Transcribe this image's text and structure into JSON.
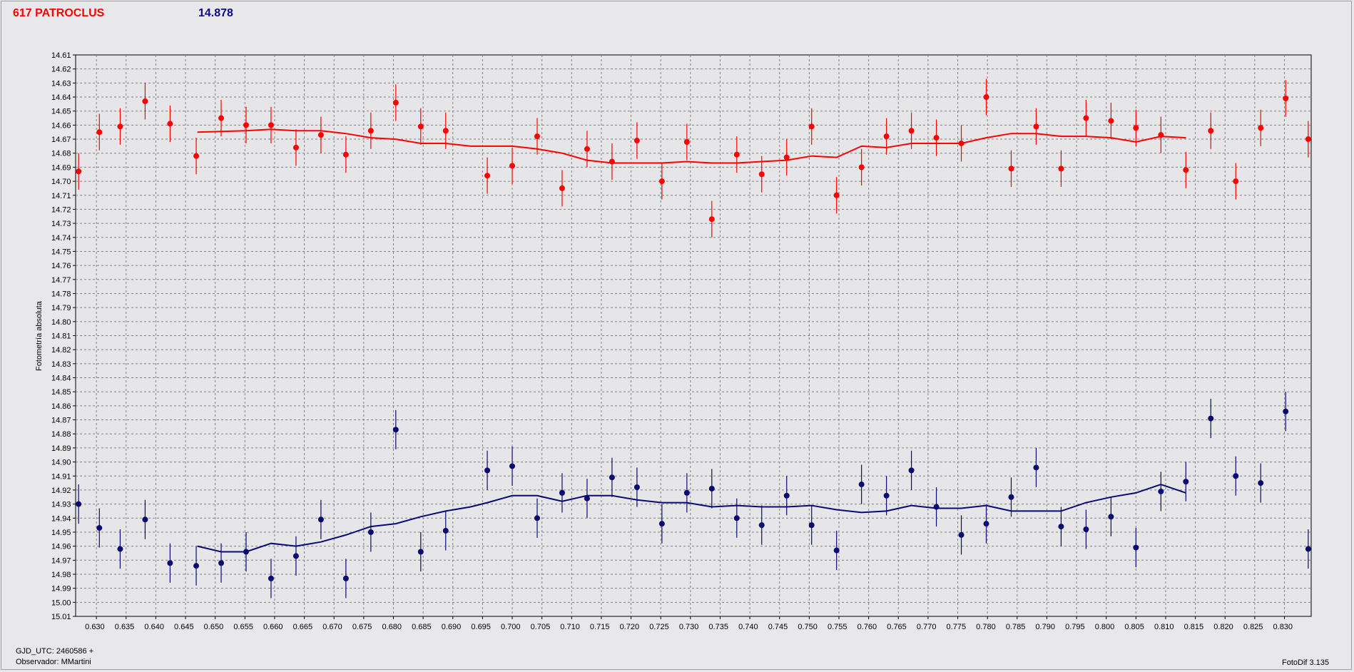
{
  "header": {
    "object_name": "617 PATROCLUS",
    "magnitude": "14.878"
  },
  "footer": {
    "gjd": "GJD_UTC: 2460586 +",
    "observer": "Observador: MMartini",
    "software": "FotoDif 3.135"
  },
  "colors": {
    "red_series": "#ff0000",
    "blue_series": "#0a0a70",
    "plot_bg": "#e6e6e8",
    "grid": "#808080"
  },
  "chart_data": {
    "type": "scatter",
    "ylabel": "Fotometría absoluta",
    "xlabel": "",
    "xlim": [
      0.6265,
      0.8345
    ],
    "ylim": [
      15.01,
      14.61
    ],
    "y_inverted": true,
    "grid": true,
    "x_ticks": [
      "0.630",
      "0.635",
      "0.640",
      "0.645",
      "0.650",
      "0.655",
      "0.660",
      "0.665",
      "0.670",
      "0.675",
      "0.680",
      "0.685",
      "0.690",
      "0.695",
      "0.700",
      "0.705",
      "0.710",
      "0.715",
      "0.720",
      "0.725",
      "0.730",
      "0.735",
      "0.740",
      "0.745",
      "0.750",
      "0.755",
      "0.760",
      "0.765",
      "0.770",
      "0.775",
      "0.780",
      "0.785",
      "0.790",
      "0.795",
      "0.800",
      "0.805",
      "0.810",
      "0.815",
      "0.820",
      "0.825",
      "0.830"
    ],
    "y_ticks": [
      "14.61",
      "14.62",
      "14.63",
      "14.64",
      "14.65",
      "14.66",
      "14.67",
      "14.68",
      "14.69",
      "14.70",
      "14.71",
      "14.72",
      "14.73",
      "14.74",
      "14.75",
      "14.76",
      "14.77",
      "14.78",
      "14.79",
      "14.80",
      "14.81",
      "14.82",
      "14.83",
      "14.84",
      "14.85",
      "14.86",
      "14.87",
      "14.88",
      "14.89",
      "14.90",
      "14.91",
      "14.92",
      "14.93",
      "14.94",
      "14.95",
      "14.96",
      "14.97",
      "14.98",
      "14.99",
      "15.00",
      "15.01"
    ],
    "series": [
      {
        "color": "#ff0000",
        "points": {
          "x": [
            0.627,
            0.6305,
            0.634,
            0.6382,
            0.6424,
            0.6468,
            0.651,
            0.6552,
            0.6594,
            0.6636,
            0.6678,
            0.672,
            0.6762,
            0.6804,
            0.6846,
            0.6888,
            0.6958,
            0.7,
            0.7042,
            0.7084,
            0.7126,
            0.7168,
            0.721,
            0.7252,
            0.7294,
            0.7336,
            0.7378,
            0.742,
            0.7462,
            0.7504,
            0.7546,
            0.7588,
            0.763,
            0.7672,
            0.7714,
            0.7756,
            0.7798,
            0.784,
            0.7882,
            0.7924,
            0.7966,
            0.8008,
            0.805,
            0.8092,
            0.8134,
            0.8176,
            0.8218,
            0.826,
            0.8302,
            0.834
          ],
          "y": [
            14.693,
            14.665,
            14.661,
            14.643,
            14.659,
            14.682,
            14.655,
            14.66,
            14.66,
            14.676,
            14.667,
            14.681,
            14.664,
            14.644,
            14.661,
            14.664,
            14.696,
            14.689,
            14.668,
            14.705,
            14.677,
            14.686,
            14.671,
            14.7,
            14.672,
            14.727,
            14.681,
            14.695,
            14.683,
            14.661,
            14.71,
            14.69,
            14.668,
            14.664,
            14.669,
            14.673,
            14.64,
            14.691,
            14.661,
            14.691,
            14.655,
            14.657,
            14.662,
            14.667,
            14.692,
            14.664,
            14.7,
            14.662,
            14.641,
            14.67
          ],
          "err": 0.013
        },
        "line": {
          "x": [
            0.647,
            0.6552,
            0.6594,
            0.6636,
            0.6678,
            0.672,
            0.6762,
            0.6804,
            0.6846,
            0.6888,
            0.693,
            0.6958,
            0.7,
            0.7042,
            0.7084,
            0.7126,
            0.7168,
            0.721,
            0.7252,
            0.7294,
            0.7336,
            0.7378,
            0.742,
            0.7462,
            0.7504,
            0.7546,
            0.7588,
            0.763,
            0.7672,
            0.7714,
            0.7756,
            0.7798,
            0.784,
            0.7882,
            0.7924,
            0.7966,
            0.8008,
            0.805,
            0.8092,
            0.8134
          ],
          "y": [
            14.665,
            14.664,
            14.663,
            14.664,
            14.664,
            14.666,
            14.669,
            14.67,
            14.673,
            14.673,
            14.675,
            14.675,
            14.675,
            14.677,
            14.68,
            14.685,
            14.687,
            14.687,
            14.687,
            14.686,
            14.687,
            14.687,
            14.686,
            14.685,
            14.682,
            14.683,
            14.675,
            14.676,
            14.673,
            14.673,
            14.673,
            14.669,
            14.666,
            14.666,
            14.668,
            14.668,
            14.669,
            14.672,
            14.668,
            14.669
          ]
        }
      },
      {
        "color": "#0a0a70",
        "points": {
          "x": [
            0.627,
            0.6305,
            0.634,
            0.6382,
            0.6424,
            0.6468,
            0.651,
            0.6552,
            0.6594,
            0.6636,
            0.6678,
            0.672,
            0.6762,
            0.6804,
            0.6846,
            0.6888,
            0.6958,
            0.7,
            0.7042,
            0.7084,
            0.7126,
            0.7168,
            0.721,
            0.7252,
            0.7294,
            0.7336,
            0.7378,
            0.742,
            0.7462,
            0.7504,
            0.7546,
            0.7588,
            0.763,
            0.7672,
            0.7714,
            0.7756,
            0.7798,
            0.784,
            0.7882,
            0.7924,
            0.7966,
            0.8008,
            0.805,
            0.8092,
            0.8134,
            0.8176,
            0.8218,
            0.826,
            0.8302,
            0.834
          ],
          "y": [
            14.93,
            14.947,
            14.962,
            14.941,
            14.972,
            14.974,
            14.972,
            14.964,
            14.983,
            14.967,
            14.941,
            14.983,
            14.95,
            14.877,
            14.964,
            14.949,
            14.906,
            14.903,
            14.94,
            14.922,
            14.926,
            14.911,
            14.918,
            14.944,
            14.922,
            14.919,
            14.94,
            14.945,
            14.924,
            14.945,
            14.963,
            14.916,
            14.924,
            14.906,
            14.932,
            14.952,
            14.944,
            14.925,
            14.904,
            14.946,
            14.948,
            14.939,
            14.961,
            14.921,
            14.914,
            14.869,
            14.91,
            14.915,
            14.864,
            14.962
          ],
          "err": 0.014
        },
        "line": {
          "x": [
            0.647,
            0.651,
            0.6552,
            0.6594,
            0.6636,
            0.6678,
            0.672,
            0.6762,
            0.6804,
            0.6846,
            0.6888,
            0.693,
            0.6958,
            0.7,
            0.7042,
            0.7084,
            0.7126,
            0.7168,
            0.721,
            0.7252,
            0.7294,
            0.7336,
            0.7378,
            0.742,
            0.7462,
            0.7504,
            0.7546,
            0.7588,
            0.763,
            0.7672,
            0.7714,
            0.7756,
            0.7798,
            0.784,
            0.7882,
            0.7924,
            0.7966,
            0.8008,
            0.805,
            0.8092,
            0.8134
          ],
          "y": [
            14.96,
            14.964,
            14.964,
            14.958,
            14.96,
            14.957,
            14.952,
            14.946,
            14.944,
            14.939,
            14.935,
            14.932,
            14.929,
            14.924,
            14.924,
            14.928,
            14.924,
            14.924,
            14.927,
            14.929,
            14.929,
            14.932,
            14.931,
            14.932,
            14.932,
            14.931,
            14.934,
            14.936,
            14.935,
            14.931,
            14.933,
            14.933,
            14.931,
            14.935,
            14.935,
            14.935,
            14.929,
            14.925,
            14.922,
            14.916,
            14.922
          ]
        }
      }
    ]
  }
}
